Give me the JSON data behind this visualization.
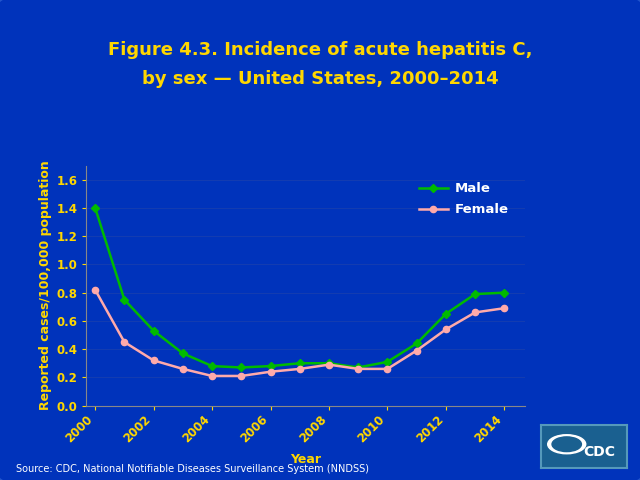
{
  "title_line1": "Figure 4.3. Incidence of acute hepatitis C,",
  "title_line2": "by sex — United States, 2000–2014",
  "xlabel": "Year",
  "ylabel": "Reported cases/100,000 population",
  "source": "Source: CDC, National Notifiable Diseases Surveillance System (NNDSS)",
  "years": [
    2000,
    2001,
    2002,
    2003,
    2004,
    2005,
    2006,
    2007,
    2008,
    2009,
    2010,
    2011,
    2012,
    2013,
    2014
  ],
  "male": [
    1.4,
    0.75,
    0.53,
    0.37,
    0.28,
    0.27,
    0.28,
    0.3,
    0.3,
    0.27,
    0.31,
    0.44,
    0.65,
    0.79,
    0.8
  ],
  "female": [
    0.82,
    0.45,
    0.32,
    0.26,
    0.21,
    0.21,
    0.24,
    0.26,
    0.29,
    0.26,
    0.26,
    0.39,
    0.54,
    0.66,
    0.69
  ],
  "male_color": "#00bb00",
  "female_color": "#ffaaaa",
  "title_color": "#FFD700",
  "axis_label_color": "#FFD700",
  "tick_label_color": "#FFD700",
  "inner_bg_color": "#0033BB",
  "outer_bg_color": "#0044CC",
  "plot_bg_color": "#0033BB",
  "axis_line_color": "#888888",
  "grid_color": "#2244AA",
  "legend_text_color": "#FFFFFF",
  "source_text_color": "#FFFFFF",
  "ylim": [
    0.0,
    1.7
  ],
  "yticks": [
    0.0,
    0.2,
    0.4,
    0.6,
    0.8,
    1.0,
    1.2,
    1.4,
    1.6
  ],
  "xticks": [
    2000,
    2002,
    2004,
    2006,
    2008,
    2010,
    2012,
    2014
  ],
  "title_fontsize": 13,
  "axis_label_fontsize": 9,
  "tick_fontsize": 8.5,
  "legend_fontsize": 9.5,
  "source_fontsize": 7
}
